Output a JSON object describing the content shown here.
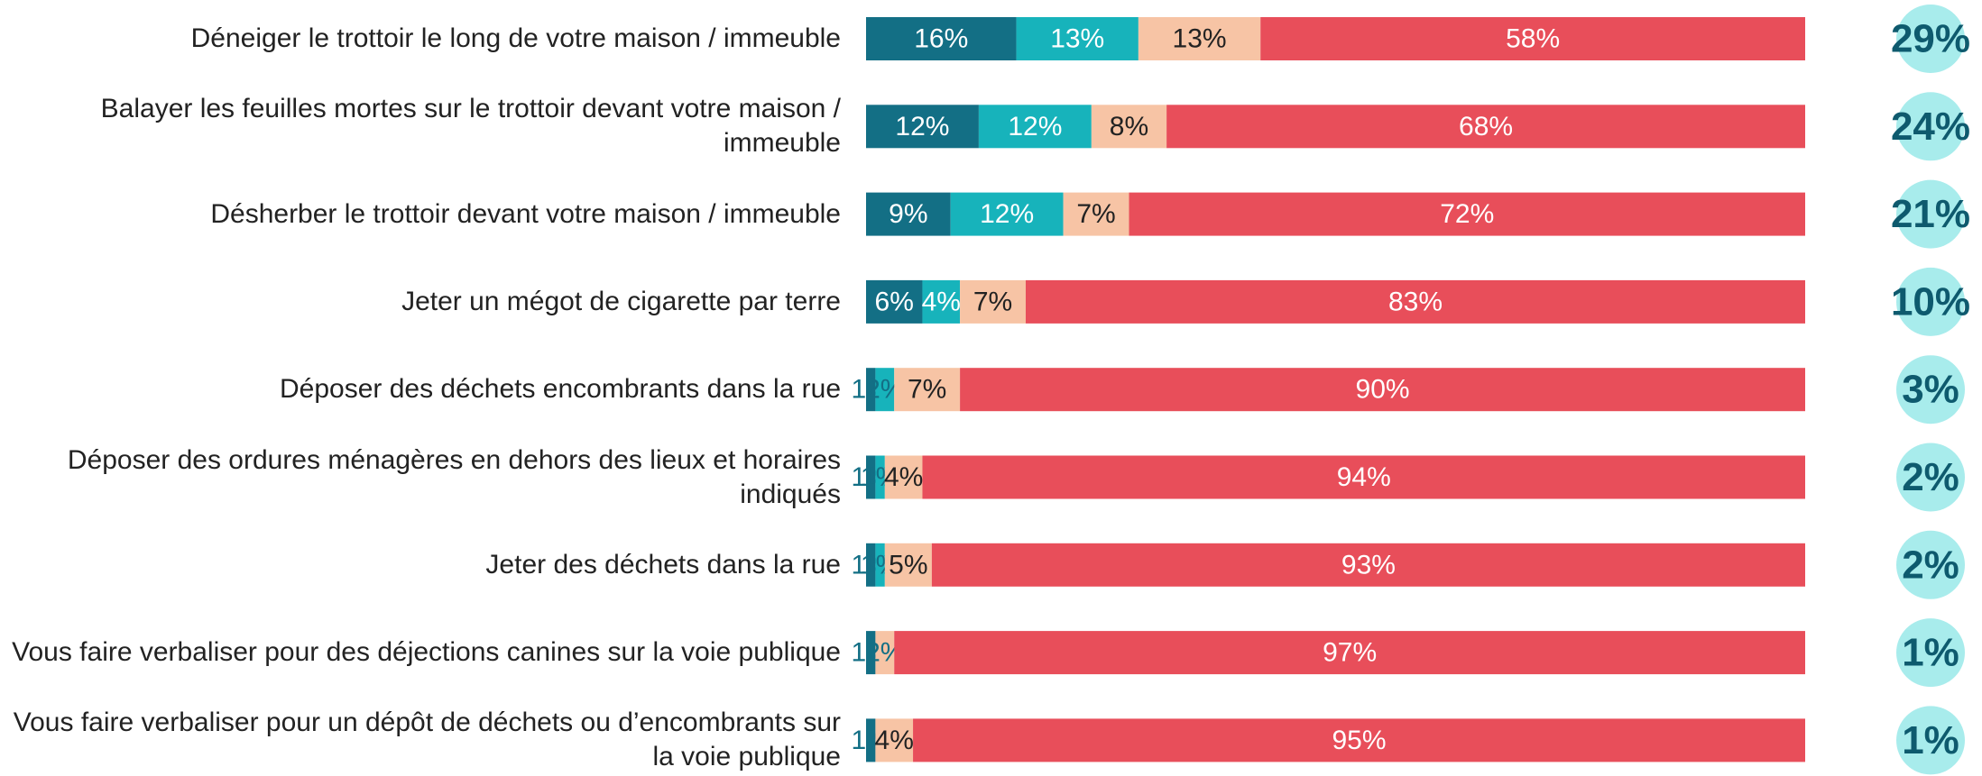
{
  "chart_data": {
    "type": "stacked-bar-horizontal",
    "categories": [
      "Déneiger le trottoir le long de votre maison / immeuble",
      "Balayer les feuilles mortes sur le trottoir devant votre maison / immeuble",
      "Désherber le trottoir devant votre maison / immeuble",
      "Jeter un mégot de cigarette par terre",
      "Déposer des déchets encombrants dans la rue",
      "Déposer des ordures ménagères en dehors des lieux et horaires indiqués",
      "Jeter des déchets dans la rue",
      "Vous faire verbaliser pour des déjections canines sur la voie publique",
      "Vous faire verbaliser pour un dépôt de déchets ou d’encombrants sur la voie publique"
    ],
    "xlim": [
      0,
      100
    ],
    "series": [
      {
        "color": "#136f85",
        "values": [
          16,
          12,
          9,
          6,
          1,
          1,
          1,
          1,
          1
        ],
        "value_labels": [
          "16%",
          "12%",
          "9%",
          "6%",
          "1%",
          "1%",
          "1%",
          "1%",
          "1%"
        ]
      },
      {
        "color": "#17b3bb",
        "values": [
          13,
          12,
          12,
          4,
          2,
          1,
          1,
          0,
          0
        ],
        "value_labels": [
          "13%",
          "12%",
          "12%",
          "4%",
          "2%",
          "1%",
          "1%",
          null,
          null
        ]
      },
      {
        "color": "#f7c4a5",
        "values": [
          13,
          8,
          7,
          7,
          7,
          4,
          5,
          2,
          4
        ],
        "value_labels": [
          "13%",
          "8%",
          "7%",
          "7%",
          "7%",
          "4%",
          "5%",
          "2%",
          "4%"
        ]
      },
      {
        "color": "#e84e5a",
        "values": [
          58,
          68,
          72,
          83,
          90,
          94,
          93,
          97,
          95
        ],
        "value_labels": [
          "58%",
          "68%",
          "72%",
          "83%",
          "90%",
          "94%",
          "93%",
          "97%",
          "95%"
        ]
      }
    ],
    "totals": {
      "color": "#a8ecec",
      "values": [
        29,
        24,
        21,
        10,
        3,
        2,
        2,
        1,
        1
      ],
      "value_labels": [
        "29%",
        "24%",
        "21%",
        "10%",
        "3%",
        "2%",
        "2%",
        "1%",
        "1%"
      ]
    }
  }
}
